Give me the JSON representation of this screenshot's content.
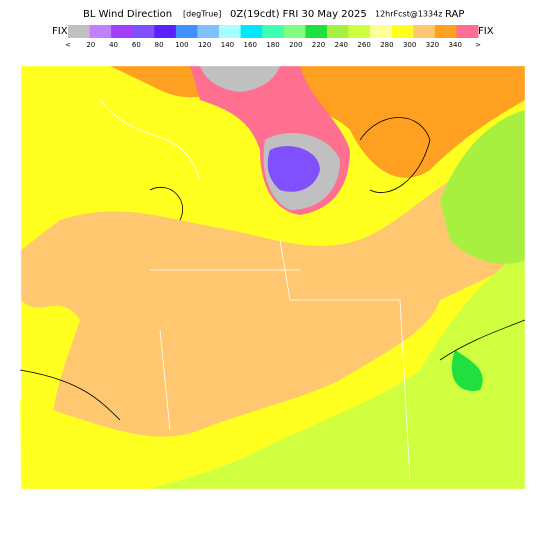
{
  "header": {
    "title": "BL Wind Direction",
    "units": "[degTrue]",
    "valid": "0Z(19cdt) FRI 30 May 2025",
    "forecast": "12hrFcst@1334z",
    "model": "RAP"
  },
  "colorbar": {
    "left_label": "FIX",
    "right_label": "FIX",
    "colors": [
      "#c0c0c0",
      "#c080ff",
      "#a040f8",
      "#8050ff",
      "#5a20ff",
      "#4090ff",
      "#80c0ff",
      "#a8ffff",
      "#00e8ff",
      "#40ffb0",
      "#80ff80",
      "#20e040",
      "#a8f040",
      "#d0ff40",
      "#ffff99",
      "#ffff20",
      "#ffc870",
      "#ffa020",
      "#ff7090"
    ],
    "labels": [
      "<",
      20,
      40,
      60,
      80,
      100,
      120,
      140,
      160,
      180,
      200,
      220,
      240,
      260,
      280,
      300,
      320,
      340,
      ">"
    ]
  }
}
